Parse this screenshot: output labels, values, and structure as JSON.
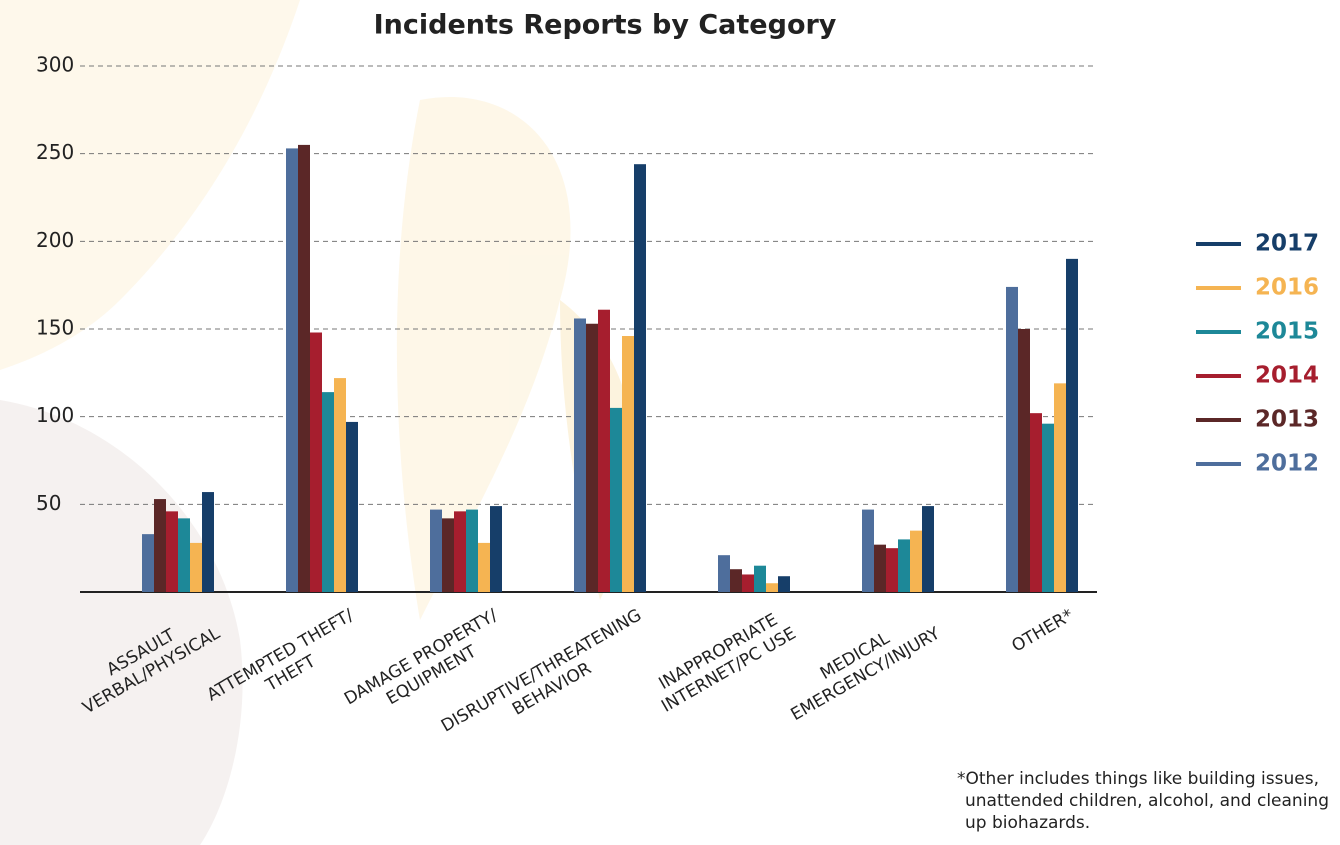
{
  "chart_data": {
    "type": "bar",
    "title": "Incidents Reports by Category",
    "categories": [
      [
        "ASSAULT",
        "VERBAL/PHYSICAL"
      ],
      [
        "ATTEMPTED THEFT/",
        "THEFT"
      ],
      [
        "DAMAGE PROPERTY/",
        "EQUIPMENT"
      ],
      [
        "DISRUPTIVE/THREATENING",
        "BEHAVIOR"
      ],
      [
        "INAPPROPRIATE",
        "INTERNET/PC USE"
      ],
      [
        "MEDICAL",
        "EMERGENCY/INJURY"
      ],
      [
        "OTHER*"
      ]
    ],
    "series": [
      {
        "name": "2012",
        "color": "#4e6e9c",
        "values": [
          33,
          253,
          47,
          156,
          21,
          47,
          174
        ]
      },
      {
        "name": "2013",
        "color": "#5b2727",
        "values": [
          53,
          255,
          42,
          153,
          13,
          27,
          150
        ]
      },
      {
        "name": "2014",
        "color": "#a61e2e",
        "values": [
          46,
          148,
          46,
          161,
          10,
          25,
          102
        ]
      },
      {
        "name": "2015",
        "color": "#1d8898",
        "values": [
          42,
          114,
          47,
          105,
          15,
          30,
          96
        ]
      },
      {
        "name": "2016",
        "color": "#f5b452",
        "values": [
          28,
          122,
          28,
          146,
          5,
          35,
          119
        ]
      },
      {
        "name": "2017",
        "color": "#163e69",
        "values": [
          57,
          97,
          49,
          244,
          9,
          49,
          190
        ]
      }
    ],
    "ylim": [
      0,
      300
    ],
    "yticks": [
      50,
      100,
      150,
      200,
      250,
      300
    ],
    "grid": true,
    "legend": "right",
    "footnote": [
      "*Other includes things like building issues,",
      "unattended children, alcohol, and cleaning",
      "up biohazards."
    ]
  }
}
